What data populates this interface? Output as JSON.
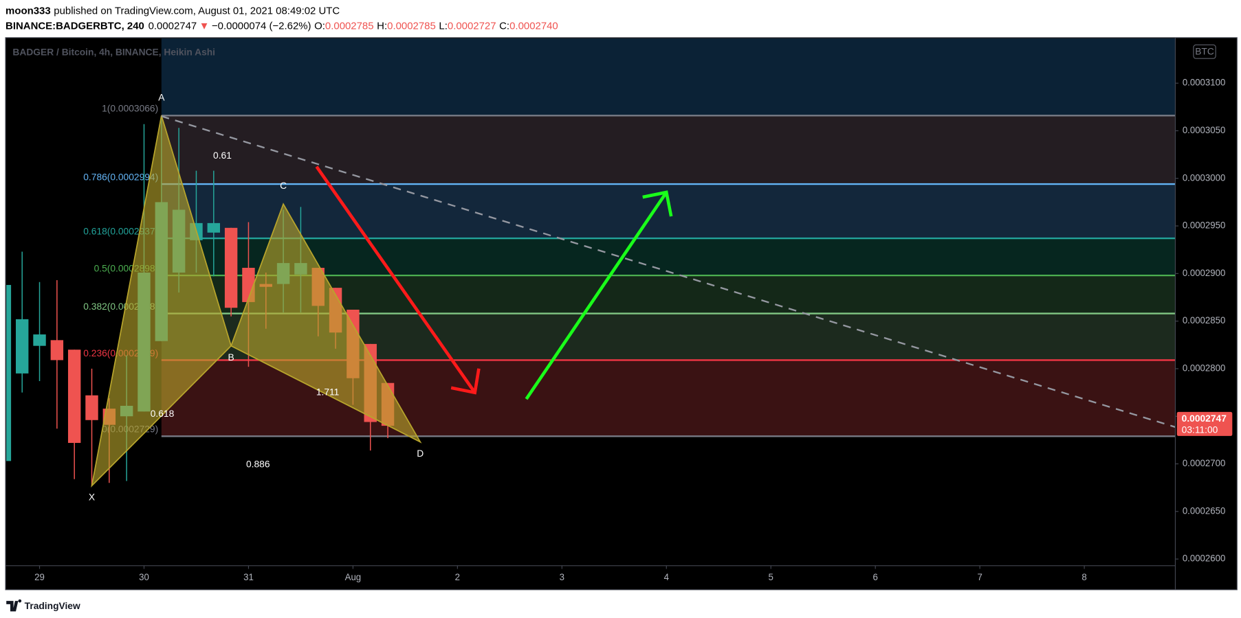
{
  "header": {
    "author": "moon333",
    "published": "published on TradingView.com, August 01, 2021 08:49:02 UTC",
    "symbol": "BINANCE:BADGERBTC, 240",
    "last": "0.0002747",
    "arrow": "▼",
    "change": "−0.0000074 (−2.62%)",
    "ohlc": [
      {
        "key": "O:",
        "value": "0.0002785"
      },
      {
        "key": "H:",
        "value": "0.0002785"
      },
      {
        "key": "L:",
        "value": "0.0002727"
      },
      {
        "key": "C:",
        "value": "0.0002740"
      }
    ]
  },
  "chart_data": {
    "type": "candlestick",
    "title": "BADGER / Bitcoin, 4h, BINANCE, Heikin Ashi",
    "currency": "BTC",
    "x": [
      28.6667,
      28.8333,
      29,
      29.1667,
      29.3333,
      29.5,
      29.6667,
      29.8333,
      30,
      30.1667,
      30.3333,
      30.5,
      30.6667,
      30.8333,
      31,
      31.1667,
      31.3333,
      31.5,
      31.6667,
      31.8333,
      32,
      32.1667,
      32.3333
    ],
    "open": [
      0.0002703,
      0.0002795,
      0.0002824,
      0.000283,
      0.000282,
      0.0002772,
      0.0002758,
      0.000275,
      0.0002755,
      0.0002829,
      0.0002901,
      0.0002935,
      0.0002943,
      0.0002948,
      0.0002906,
      0.0002889,
      0.0002889,
      0.0002899,
      0.0002906,
      0.0002885,
      0.0002862,
      0.0002826,
      0.0002785
    ],
    "high": [
      0.0002888,
      0.0002923,
      0.0002891,
      0.0002893,
      0.000282,
      0.00028,
      0.0002769,
      0.0002814,
      0.0003057,
      0.0003065,
      0.0003053,
      0.0003008,
      0.0003008,
      0.0002948,
      0.0002954,
      0.0002901,
      0.0002967,
      0.000297,
      0.0002906,
      0.0002885,
      0.0002862,
      0.0002826,
      0.0002785
    ],
    "low": [
      0.0002703,
      0.0002775,
      0.0002787,
      0.0002737,
      0.0002684,
      0.0002677,
      0.000268,
      0.0002682,
      0.0002755,
      0.0002829,
      0.000288,
      0.0002901,
      0.0002897,
      0.0002855,
      0.0002802,
      0.0002842,
      0.0002859,
      0.0002859,
      0.0002834,
      0.0002821,
      0.0002762,
      0.0002714,
      0.0002727
    ],
    "close": [
      0.0002888,
      0.0002852,
      0.0002836,
      0.0002809,
      0.0002722,
      0.0002746,
      0.0002741,
      0.0002761,
      0.0002901,
      0.0002975,
      0.0002967,
      0.0002953,
      0.0002953,
      0.0002864,
      0.000287,
      0.0002886,
      0.0002911,
      0.0002911,
      0.0002866,
      0.0002838,
      0.000279,
      0.0002744,
      0.000274
    ],
    "up_color": "#26a69a",
    "down_color": "#ef5350",
    "xlim": [
      28.682,
      39.871
    ],
    "xticks": [
      {
        "value": 29,
        "label": "29"
      },
      {
        "value": 30,
        "label": "30"
      },
      31,
      {
        "value": 32,
        "label": "Aug"
      },
      {
        "value": 33,
        "label": "2"
      },
      {
        "value": 34,
        "label": "3"
      },
      {
        "value": 35,
        "label": "4"
      },
      {
        "value": 36,
        "label": "5"
      },
      {
        "value": 37,
        "label": "6"
      },
      {
        "value": 38,
        "label": "7"
      },
      {
        "value": 39,
        "label": "8"
      }
    ],
    "ylim": [
      0.0002593,
      0.0003147
    ],
    "yticks": [
      {
        "value": 0.00026,
        "label": "0.0002600"
      },
      {
        "value": 0.000265,
        "label": "0.0002650"
      },
      {
        "value": 0.00027,
        "label": "0.0002700"
      },
      {
        "value": 0.000275,
        "label": "0.0002750"
      },
      {
        "value": 0.00028,
        "label": "0.0002800"
      },
      {
        "value": 0.000285,
        "label": "0.0002850"
      },
      {
        "value": 0.00029,
        "label": "0.0002900"
      },
      {
        "value": 0.000295,
        "label": "0.0002950"
      },
      {
        "value": 0.0003,
        "label": "0.0003000"
      },
      {
        "value": 0.000305,
        "label": "0.0003050"
      },
      {
        "value": 0.00031,
        "label": "0.0003100"
      }
    ],
    "grid": false,
    "fib_levels": [
      {
        "label": "1(0.0003066)",
        "value": 0.0003066,
        "color": "#787b86",
        "fill": "#241d22"
      },
      {
        "label": "0.786(0.0002994)",
        "value": 0.0002994,
        "color": "#64b5f6",
        "fill": "#13273b"
      },
      {
        "label": "0.618(0.0002937)",
        "value": 0.0002937,
        "color": "#22a39a",
        "fill": "#06261f"
      },
      {
        "label": "0.5(0.0002898)",
        "value": 0.0002898,
        "color": "#4caf50",
        "fill": "#142818"
      },
      {
        "label": "0.382(0.0002858)",
        "value": 0.0002858,
        "color": "#81c784",
        "fill": "#1c2a1e"
      },
      {
        "label": "0.236(0.0002809)",
        "value": 0.0002809,
        "color": "#f23645",
        "fill": "#3a1213"
      },
      {
        "label": "0(0.0002729)",
        "value": 0.0002729,
        "color": "#787b86"
      }
    ],
    "pattern": {
      "color": "#b8a52c",
      "points": [
        {
          "label": "X",
          "x": 29.5,
          "y": 0.0002677
        },
        {
          "label": "A",
          "x": 30.1667,
          "y": 0.0003066
        },
        {
          "label": "B",
          "x": 30.8333,
          "y": 0.0002824
        },
        {
          "label": "C",
          "x": 31.3333,
          "y": 0.0002973
        },
        {
          "label": "D",
          "x": 32.644,
          "y": 0.0002723
        }
      ],
      "ratios": [
        "0.61",
        "0.618",
        "0.886",
        "1.711"
      ]
    },
    "last_price": {
      "value": 0.0002747,
      "label": "0.0002747"
    },
    "countdown": "03:11:00"
  },
  "footer": {
    "brand": "TradingView"
  }
}
